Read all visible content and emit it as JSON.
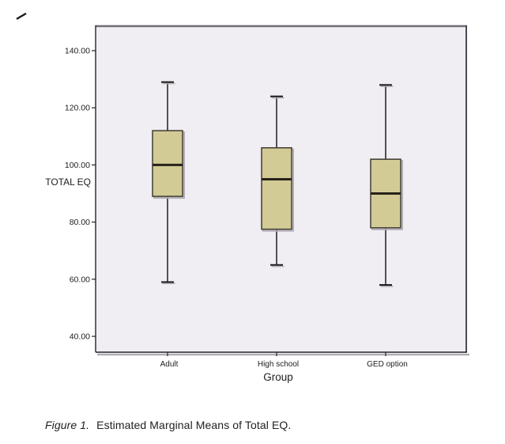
{
  "figure": {
    "caption_label": "Figure 1.",
    "caption_text": "Estimated Marginal Means of Total EQ."
  },
  "chart_data": {
    "type": "boxplot",
    "title": "",
    "xlabel": "Group",
    "ylabel": "TOTAL EQ",
    "categories": [
      "Adult",
      "High school",
      "GED option"
    ],
    "series": [
      {
        "category": "Adult",
        "whisker_low": 59,
        "q1": 89,
        "median": 100,
        "q3": 112,
        "whisker_high": 129
      },
      {
        "category": "High school",
        "whisker_low": 65,
        "q1": 77.5,
        "median": 95,
        "q3": 106,
        "whisker_high": 124
      },
      {
        "category": "GED option",
        "whisker_low": 58,
        "q1": 78,
        "median": 90,
        "q3": 102,
        "whisker_high": 128
      }
    ],
    "y_axis": {
      "ticks": [
        40,
        60,
        80,
        100,
        120,
        140
      ],
      "tick_labels": [
        "40.00",
        "60.00",
        "80.00",
        "100.00",
        "120.00",
        "140.00"
      ],
      "range": [
        31,
        149
      ]
    },
    "grid": false,
    "legend_position": "none",
    "colors": {
      "box_fill": "#d2cb95",
      "box_border": "#3f3b31",
      "median_line": "#26231a",
      "whisker": "#1c1c1c",
      "plot_background": "#f0eef2",
      "frame_dark": "#242428",
      "frame_top": "#716d74",
      "frame_right": "#4c4a50",
      "shadow": "#b3adb7"
    }
  }
}
